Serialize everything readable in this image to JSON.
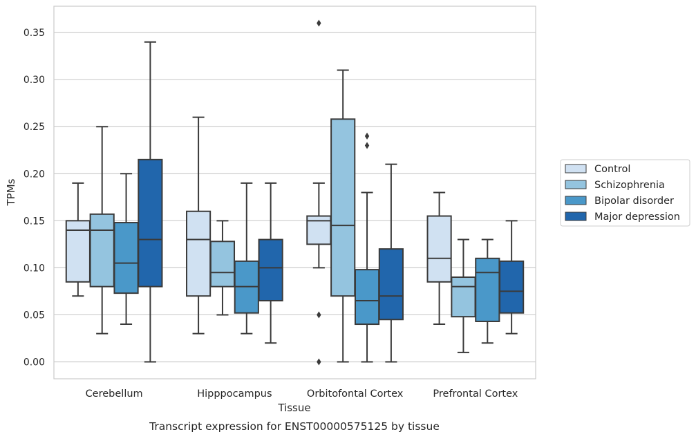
{
  "chart_data": {
    "type": "box",
    "caption": "Transcript expression for ENST00000575125 by tissue",
    "xlabel": "Tissue",
    "ylabel": "TPMs",
    "ylim": [
      -0.018,
      0.378
    ],
    "yticks": [
      0.0,
      0.05,
      0.1,
      0.15,
      0.2,
      0.25,
      0.3,
      0.35
    ],
    "ytick_labels": [
      "0.00",
      "0.05",
      "0.10",
      "0.15",
      "0.20",
      "0.25",
      "0.30",
      "0.35"
    ],
    "grid": "horizontal",
    "legend_position": "right",
    "categories": [
      "Cerebellum",
      "Hipppocampus",
      "Orbitofontal Cortex",
      "Prefrontal Cortex"
    ],
    "series": [
      {
        "name": "Control",
        "color": "#d0e1f2",
        "boxes": [
          {
            "whisker_low": 0.07,
            "q1": 0.085,
            "median": 0.14,
            "q3": 0.15,
            "whisker_high": 0.19,
            "outliers": []
          },
          {
            "whisker_low": 0.03,
            "q1": 0.07,
            "median": 0.13,
            "q3": 0.16,
            "whisker_high": 0.26,
            "outliers": []
          },
          {
            "whisker_low": 0.1,
            "q1": 0.125,
            "median": 0.15,
            "q3": 0.155,
            "whisker_high": 0.19,
            "outliers": [
              0.36,
              0.05,
              0.0
            ]
          },
          {
            "whisker_low": 0.04,
            "q1": 0.085,
            "median": 0.11,
            "q3": 0.155,
            "whisker_high": 0.18,
            "outliers": []
          }
        ]
      },
      {
        "name": "Schizophrenia",
        "color": "#94c4df",
        "boxes": [
          {
            "whisker_low": 0.03,
            "q1": 0.08,
            "median": 0.14,
            "q3": 0.157,
            "whisker_high": 0.25,
            "outliers": []
          },
          {
            "whisker_low": 0.05,
            "q1": 0.08,
            "median": 0.095,
            "q3": 0.128,
            "whisker_high": 0.15,
            "outliers": []
          },
          {
            "whisker_low": 0.0,
            "q1": 0.07,
            "median": 0.145,
            "q3": 0.258,
            "whisker_high": 0.31,
            "outliers": []
          },
          {
            "whisker_low": 0.01,
            "q1": 0.048,
            "median": 0.08,
            "q3": 0.09,
            "whisker_high": 0.13,
            "outliers": []
          }
        ]
      },
      {
        "name": "Bipolar disorder",
        "color": "#4a98c9",
        "boxes": [
          {
            "whisker_low": 0.04,
            "q1": 0.073,
            "median": 0.105,
            "q3": 0.148,
            "whisker_high": 0.2,
            "outliers": []
          },
          {
            "whisker_low": 0.03,
            "q1": 0.052,
            "median": 0.08,
            "q3": 0.107,
            "whisker_high": 0.19,
            "outliers": []
          },
          {
            "whisker_low": 0.0,
            "q1": 0.04,
            "median": 0.065,
            "q3": 0.098,
            "whisker_high": 0.18,
            "outliers": [
              0.24,
              0.23
            ]
          },
          {
            "whisker_low": 0.02,
            "q1": 0.043,
            "median": 0.095,
            "q3": 0.11,
            "whisker_high": 0.13,
            "outliers": []
          }
        ]
      },
      {
        "name": "Major depression",
        "color": "#2166ac",
        "boxes": [
          {
            "whisker_low": 0.0,
            "q1": 0.08,
            "median": 0.13,
            "q3": 0.215,
            "whisker_high": 0.34,
            "outliers": []
          },
          {
            "whisker_low": 0.02,
            "q1": 0.065,
            "median": 0.1,
            "q3": 0.13,
            "whisker_high": 0.19,
            "outliers": []
          },
          {
            "whisker_low": 0.0,
            "q1": 0.045,
            "median": 0.07,
            "q3": 0.12,
            "whisker_high": 0.21,
            "outliers": []
          },
          {
            "whisker_low": 0.03,
            "q1": 0.052,
            "median": 0.075,
            "q3": 0.107,
            "whisker_high": 0.15,
            "outliers": []
          }
        ]
      }
    ]
  }
}
